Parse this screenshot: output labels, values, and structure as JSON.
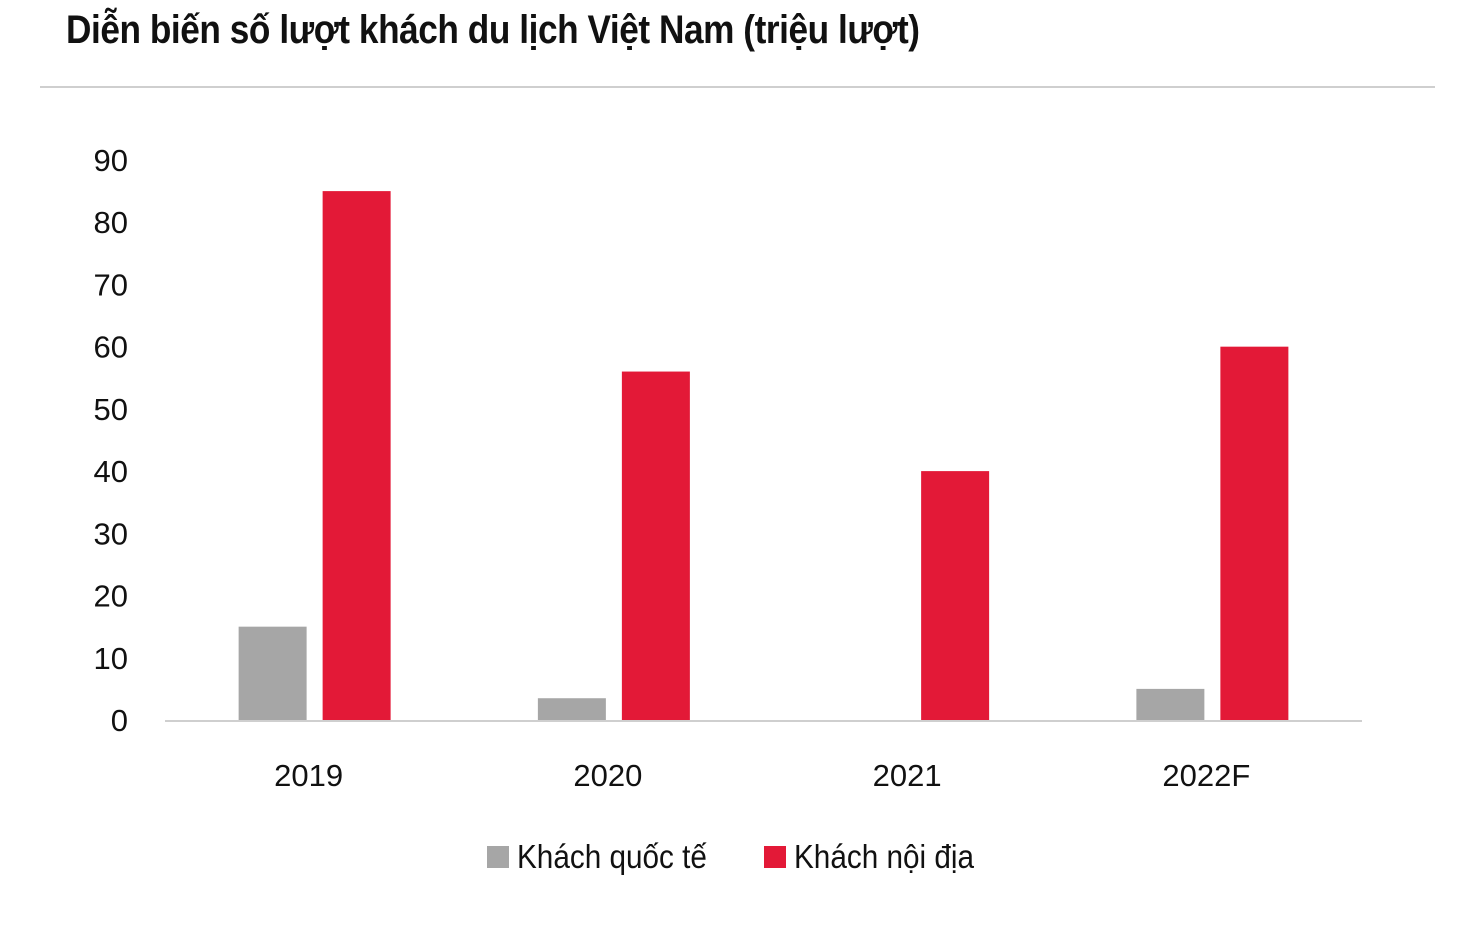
{
  "chart_data": {
    "type": "bar",
    "title": "Diễn biến số lượt khách du lịch Việt Nam (triệu lượt)",
    "xlabel": "",
    "ylabel": "",
    "categories": [
      "2019",
      "2020",
      "2021",
      "2022F"
    ],
    "series": [
      {
        "name": "Khách quốc tế",
        "color": "#a6a6a6",
        "values": [
          15,
          3.5,
          0,
          5
        ]
      },
      {
        "name": "Khách nội địa",
        "color": "#e31937",
        "values": [
          85,
          56,
          40,
          60
        ]
      }
    ],
    "ylim": [
      0,
      90
    ],
    "yticks": [
      0,
      10,
      20,
      30,
      40,
      50,
      60,
      70,
      80,
      90
    ],
    "grid": false,
    "legend_position": "bottom"
  }
}
